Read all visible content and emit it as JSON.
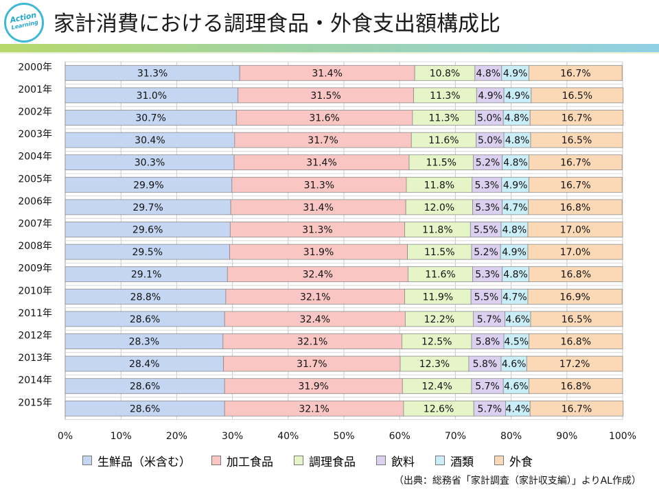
{
  "header": {
    "logo_line1": "Action",
    "logo_line2": "Learning",
    "title": "家計消費における調理食品・外食支出額構成比"
  },
  "chart_data": {
    "type": "bar",
    "orientation": "horizontal",
    "stacked": "percent",
    "categories": [
      "2000年",
      "2001年",
      "2002年",
      "2003年",
      "2004年",
      "2005年",
      "2006年",
      "2007年",
      "2008年",
      "2009年",
      "2010年",
      "2011年",
      "2012年",
      "2013年",
      "2014年",
      "2015年"
    ],
    "series": [
      {
        "name": "生鮮品（米含む）",
        "color": "#c4d6f2",
        "values": [
          31.3,
          31.0,
          30.7,
          30.4,
          30.3,
          29.9,
          29.7,
          29.6,
          29.5,
          29.1,
          28.8,
          28.6,
          28.3,
          28.4,
          28.6,
          28.6
        ]
      },
      {
        "name": "加工食品",
        "color": "#f9c6c4",
        "values": [
          31.4,
          31.5,
          31.6,
          31.7,
          31.4,
          31.3,
          31.4,
          31.3,
          31.9,
          32.4,
          32.1,
          32.4,
          32.1,
          31.7,
          31.9,
          32.1
        ]
      },
      {
        "name": "調理食品",
        "color": "#e5f5c8",
        "values": [
          10.8,
          11.3,
          11.3,
          11.6,
          11.5,
          11.8,
          12.0,
          11.8,
          11.5,
          11.6,
          11.9,
          12.2,
          12.5,
          12.3,
          12.4,
          12.6
        ]
      },
      {
        "name": "飲料",
        "color": "#dcd0f0",
        "values": [
          4.8,
          4.9,
          5.0,
          5.0,
          5.2,
          5.3,
          5.3,
          5.5,
          5.2,
          5.3,
          5.5,
          5.7,
          5.8,
          5.8,
          5.7,
          5.7
        ]
      },
      {
        "name": "酒類",
        "color": "#c9eef7",
        "values": [
          4.9,
          4.9,
          4.8,
          4.8,
          4.8,
          4.9,
          4.7,
          4.8,
          4.9,
          4.8,
          4.7,
          4.6,
          4.5,
          4.6,
          4.6,
          4.4
        ]
      },
      {
        "name": "外食",
        "color": "#fbd9b6",
        "values": [
          16.7,
          16.5,
          16.7,
          16.5,
          16.7,
          16.7,
          16.8,
          17.0,
          17.0,
          16.8,
          16.9,
          16.5,
          16.8,
          17.2,
          16.8,
          16.7
        ]
      }
    ],
    "x_ticks": [
      "0%",
      "10%",
      "20%",
      "30%",
      "40%",
      "50%",
      "60%",
      "70%",
      "80%",
      "90%",
      "100%"
    ],
    "xlim": [
      0,
      100
    ],
    "grid": true,
    "legend_position": "bottom",
    "data_label_suffix": "%"
  },
  "source": "（出典：総務省「家計調査（家計収支編）」よりAL作成）"
}
